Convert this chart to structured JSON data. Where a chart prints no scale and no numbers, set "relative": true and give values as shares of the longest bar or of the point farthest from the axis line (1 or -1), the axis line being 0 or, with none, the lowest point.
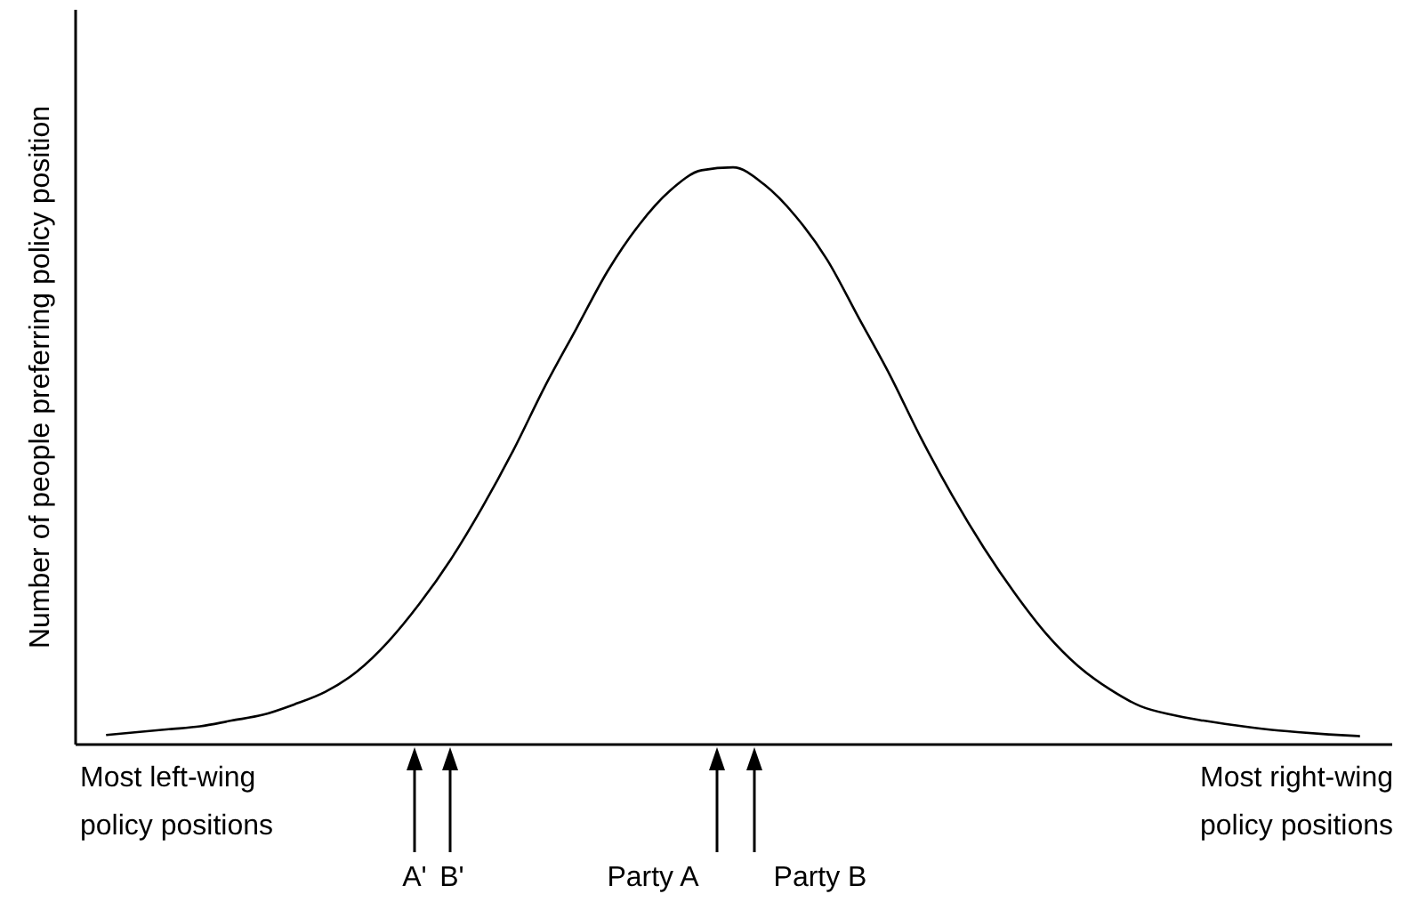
{
  "chart_data": {
    "type": "line",
    "relative": true,
    "ylabel": "Number of people preferring policy position",
    "categories": [
      null,
      null,
      null,
      null,
      null,
      null,
      null,
      null,
      null,
      null,
      null,
      null,
      null,
      null,
      null,
      null,
      null,
      null,
      null,
      null,
      null,
      null,
      null,
      null,
      null,
      null,
      null,
      null,
      null,
      null,
      null,
      null,
      null,
      null,
      null,
      null,
      null,
      null,
      null,
      null,
      null
    ],
    "series": [
      {
        "color": "#000000",
        "values": [
          0.015,
          0.02,
          0.025,
          0.03,
          0.04,
          0.05,
          0.068,
          0.09,
          0.125,
          0.177,
          0.243,
          0.32,
          0.41,
          0.51,
          0.62,
          0.72,
          0.82,
          0.9,
          0.96,
          0.995,
          1,
          0.97,
          0.915,
          0.84,
          0.74,
          0.64,
          0.53,
          0.43,
          0.34,
          0.26,
          0.19,
          0.135,
          0.095,
          0.065,
          0.05,
          0.04,
          0.032,
          0.025,
          0.02,
          0.016,
          0.013
        ]
      }
    ],
    "annotations": [
      "Most left-wing policy positions",
      "A'",
      "B'",
      "Party A",
      "Party B",
      "Most right-wing policy positions"
    ],
    "tick_labels": false,
    "grid": false,
    "marker": "none",
    "line_style": "solid"
  }
}
